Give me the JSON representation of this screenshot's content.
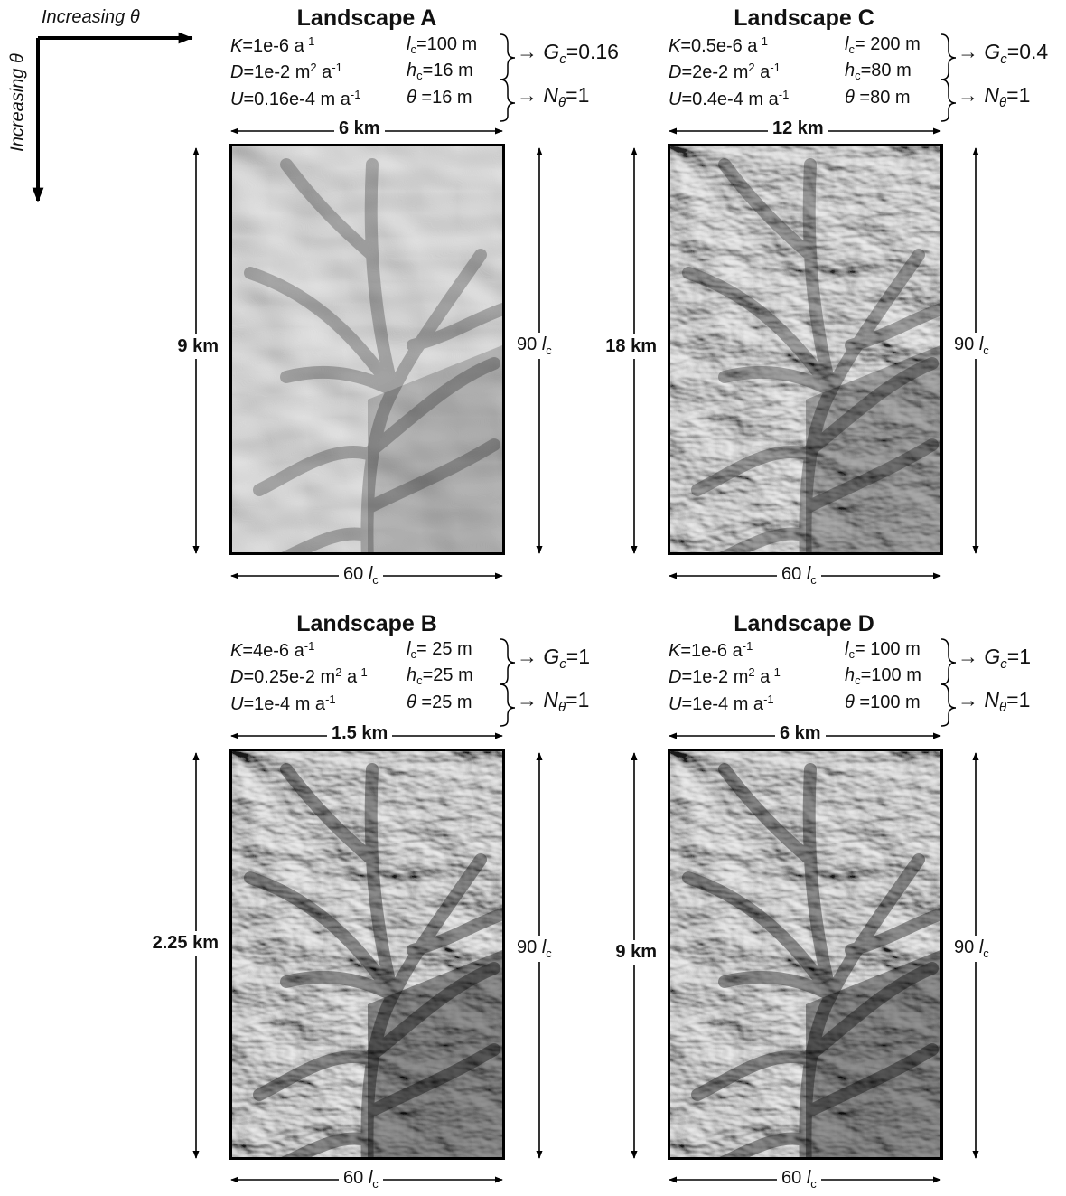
{
  "axis_labels": {
    "horizontal": "Increasing θ",
    "vertical": "Increasing θ"
  },
  "panels": [
    {
      "id": "A",
      "title": "Landscape A",
      "params": {
        "K": "=1e-6 a",
        "K_exp": "-1",
        "D": "=1e-2 m",
        "D_exp1": "2",
        "D_mid": " a",
        "D_exp2": "-1",
        "U": "=0.16e-4 m a",
        "U_exp": "-1",
        "lc": "=100 m",
        "hc": "=16 m",
        "theta": " =16 m"
      },
      "Gc": "=0.16",
      "Ntheta": "=1",
      "width_label": "6 km",
      "height_label": "9 km",
      "bottom_label": "60 ",
      "right_label": "90 "
    },
    {
      "id": "C",
      "title": "Landscape C",
      "params": {
        "K": "=0.5e-6 a",
        "K_exp": "-1",
        "D": "=2e-2 m",
        "D_exp1": "2",
        "D_mid": " a",
        "D_exp2": "-1",
        "U": "=0.4e-4 m a",
        "U_exp": "-1",
        "lc": "= 200 m",
        "hc": "=80 m",
        "theta": " =80 m"
      },
      "Gc": "=0.4",
      "Ntheta": "=1",
      "width_label": "12 km",
      "height_label": "18 km",
      "bottom_label": "60 ",
      "right_label": "90 "
    },
    {
      "id": "B",
      "title": "Landscape B",
      "params": {
        "K": "=4e-6 a",
        "K_exp": "-1",
        "D": "=0.25e-2 m",
        "D_exp1": "2",
        "D_mid": " a",
        "D_exp2": "-1",
        "U": "=1e-4 m a",
        "U_exp": "-1",
        "lc": "= 25 m",
        "hc": "=25 m",
        "theta": " =25 m"
      },
      "Gc": "=1",
      "Ntheta": "=1",
      "width_label": "1.5 km",
      "height_label": "2.25 km",
      "bottom_label": "60 ",
      "right_label": "90 "
    },
    {
      "id": "D",
      "title": "Landscape D",
      "params": {
        "K": "=1e-6 a",
        "K_exp": "-1",
        "D": "=1e-2 m",
        "D_exp1": "2",
        "D_mid": " a",
        "D_exp2": "-1",
        "U": "=1e-4 m a",
        "U_exp": "-1",
        "lc": "= 100 m",
        "hc": "=100 m",
        "theta": " =100 m"
      },
      "Gc": "=1",
      "Ntheta": "=1",
      "width_label": "6 km",
      "height_label": "9 km",
      "bottom_label": "60 ",
      "right_label": "90 "
    }
  ],
  "symbols": {
    "K": "K",
    "D": "D",
    "U": "U",
    "l": "l",
    "c": "c",
    "h": "h",
    "theta": "θ",
    "G": "G",
    "N": "N",
    "arrow": "→"
  }
}
